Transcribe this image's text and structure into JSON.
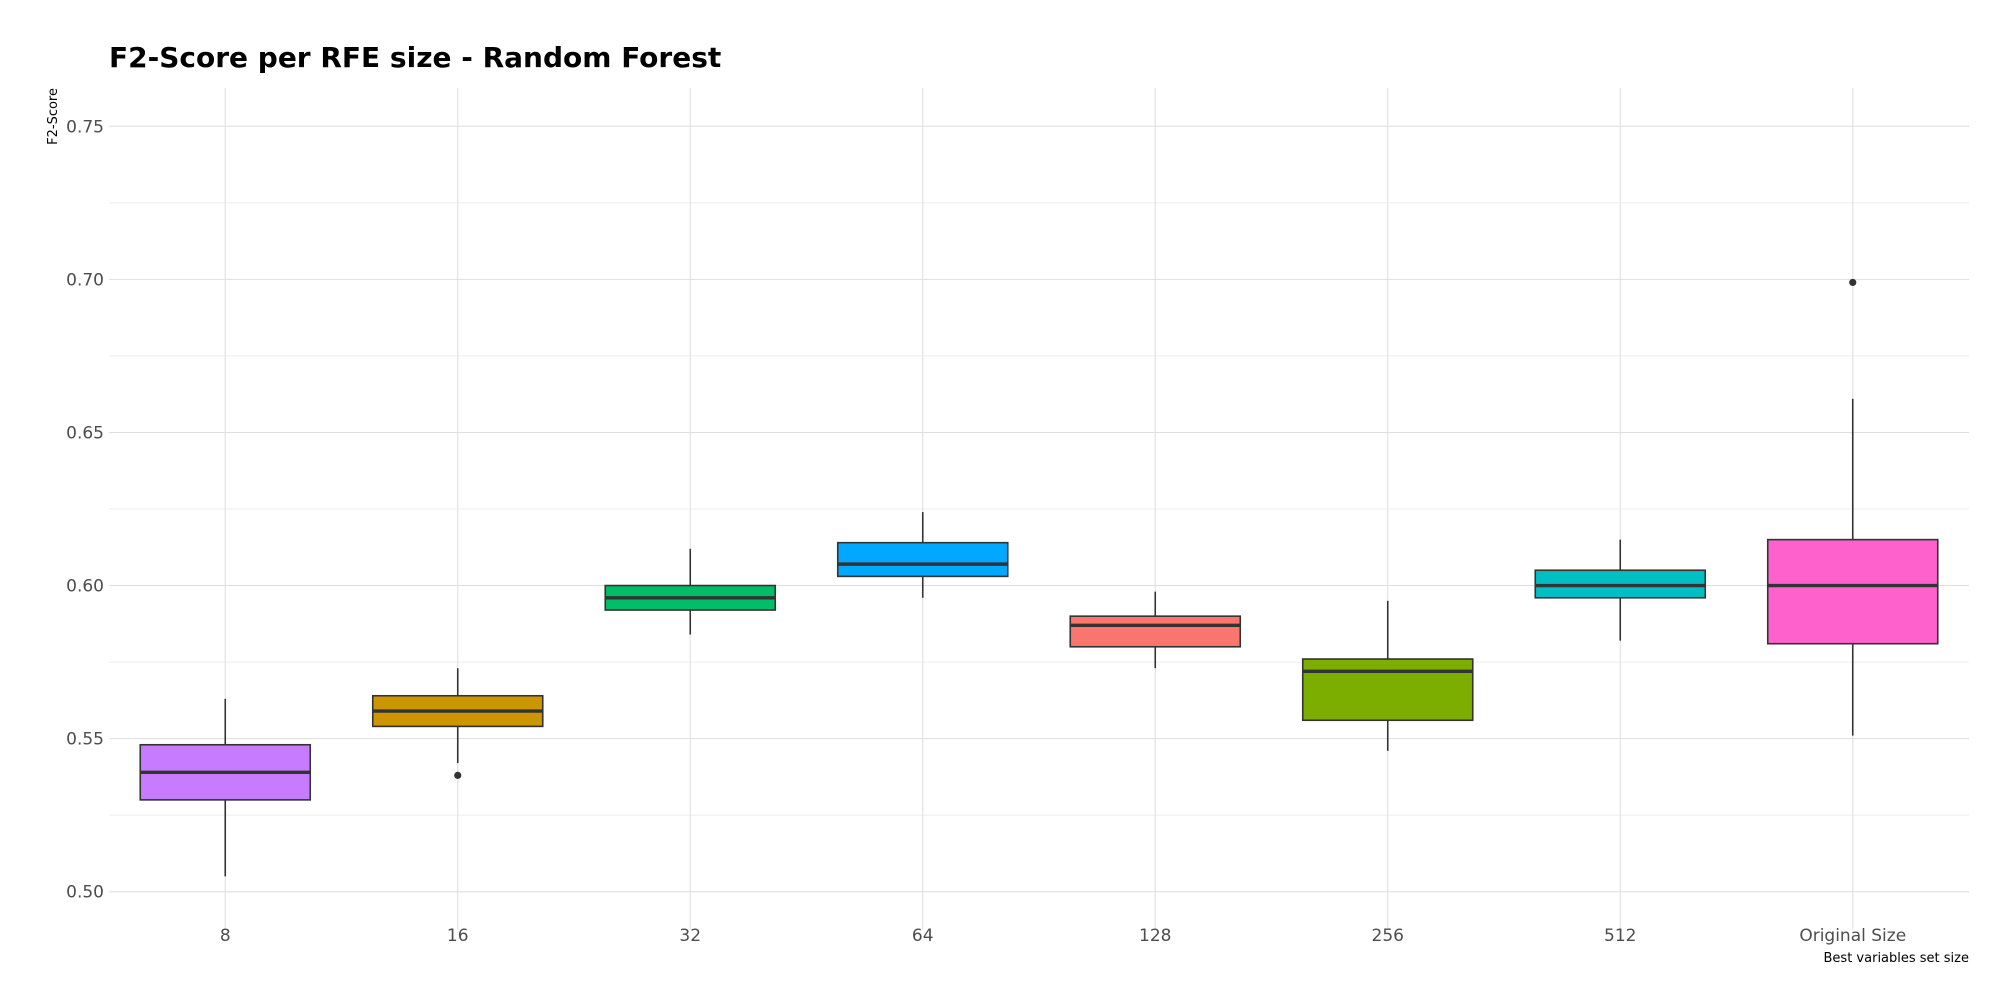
{
  "chart_data": {
    "type": "boxplot",
    "title": "F2-Score per RFE size - Random Forest",
    "xlabel": "Best variables set size",
    "ylabel": "F2-Score",
    "ylim": [
      0.4875,
      0.7625
    ],
    "yticks": [
      0.5,
      0.55,
      0.6,
      0.65,
      0.7,
      0.75
    ],
    "ytick_labels": [
      "0.50",
      "0.55",
      "0.60",
      "0.65",
      "0.70",
      "0.75"
    ],
    "grid": true,
    "legend": "none",
    "categories": [
      "8",
      "16",
      "32",
      "64",
      "128",
      "256",
      "512",
      "Original Size"
    ],
    "boxes": [
      {
        "category": "8",
        "color": "#C77CFF",
        "whisker_low": 0.505,
        "q1": 0.53,
        "median": 0.539,
        "q3": 0.548,
        "whisker_high": 0.563,
        "outliers": []
      },
      {
        "category": "16",
        "color": "#CD9600",
        "whisker_low": 0.542,
        "q1": 0.554,
        "median": 0.559,
        "q3": 0.564,
        "whisker_high": 0.573,
        "outliers": [
          0.538
        ]
      },
      {
        "category": "32",
        "color": "#00BE67",
        "whisker_low": 0.584,
        "q1": 0.592,
        "median": 0.596,
        "q3": 0.6,
        "whisker_high": 0.612,
        "outliers": []
      },
      {
        "category": "64",
        "color": "#00A9FF",
        "whisker_low": 0.596,
        "q1": 0.603,
        "median": 0.607,
        "q3": 0.614,
        "whisker_high": 0.624,
        "outliers": []
      },
      {
        "category": "128",
        "color": "#F8766D",
        "whisker_low": 0.573,
        "q1": 0.58,
        "median": 0.587,
        "q3": 0.59,
        "whisker_high": 0.598,
        "outliers": []
      },
      {
        "category": "256",
        "color": "#7CAE00",
        "whisker_low": 0.546,
        "q1": 0.556,
        "median": 0.572,
        "q3": 0.576,
        "whisker_high": 0.595,
        "outliers": []
      },
      {
        "category": "512",
        "color": "#00BFC4",
        "whisker_low": 0.582,
        "q1": 0.596,
        "median": 0.6,
        "q3": 0.605,
        "whisker_high": 0.615,
        "outliers": []
      },
      {
        "category": "Original Size",
        "color": "#FF61CC",
        "whisker_low": 0.551,
        "q1": 0.581,
        "median": 0.6,
        "q3": 0.615,
        "whisker_high": 0.661,
        "outliers": [
          0.699
        ]
      }
    ]
  }
}
